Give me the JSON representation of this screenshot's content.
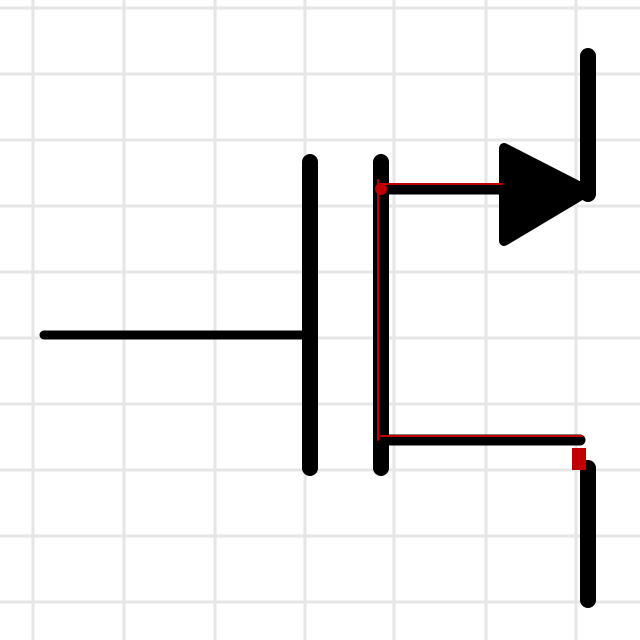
{
  "diagram": {
    "type": "mosfet-schematic-symbol",
    "terminals": [
      "gate",
      "source",
      "drain"
    ],
    "source_arrow": "outward",
    "colors": {
      "background": "#ffffff",
      "grid": "#e6e6e6",
      "stroke": "#000000",
      "highlight": "#c00000"
    }
  }
}
